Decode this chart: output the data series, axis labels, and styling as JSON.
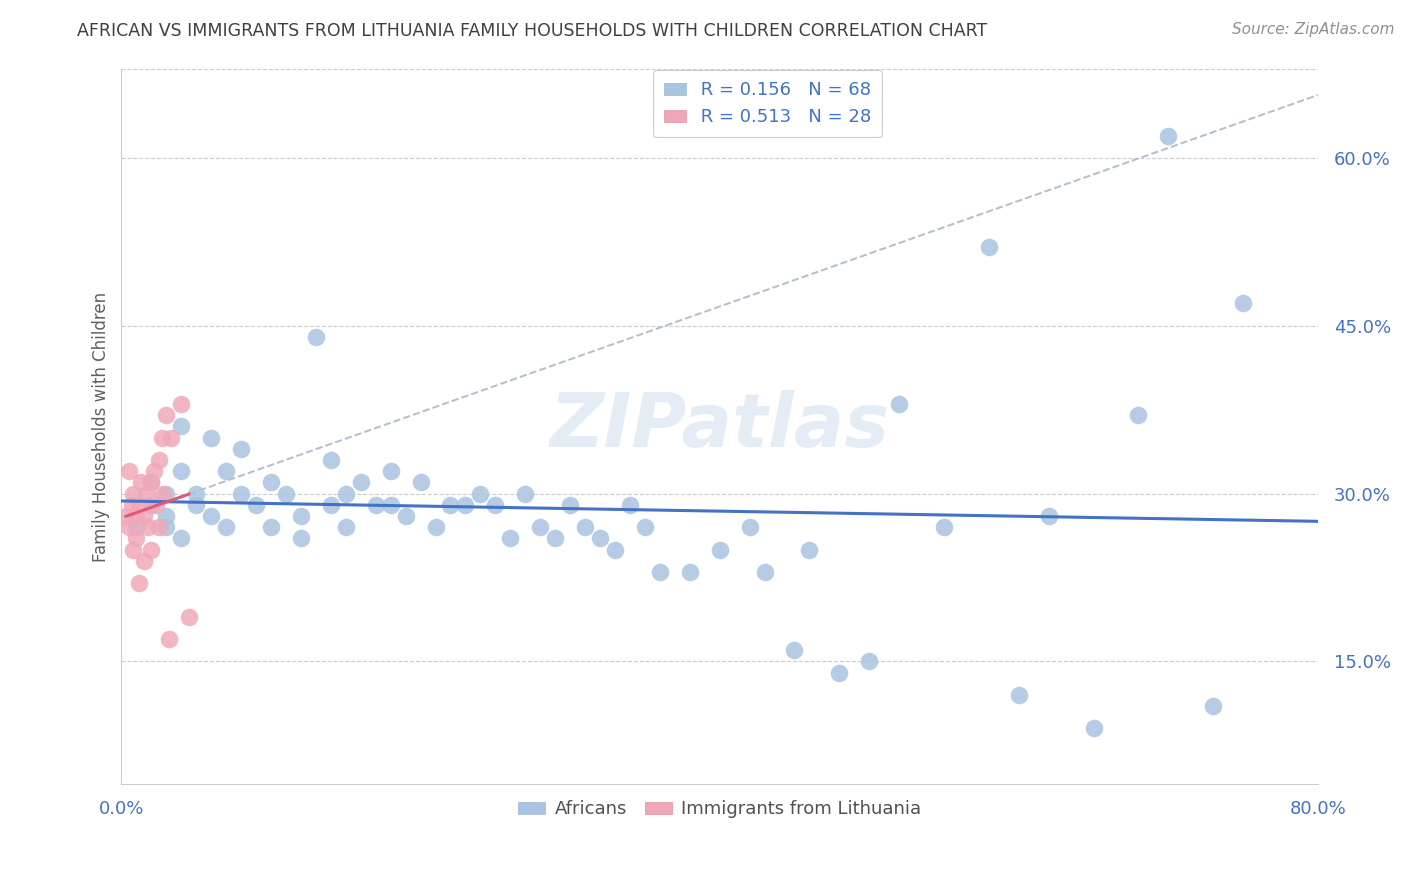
{
  "title": "AFRICAN VS IMMIGRANTS FROM LITHUANIA FAMILY HOUSEHOLDS WITH CHILDREN CORRELATION CHART",
  "source": "Source: ZipAtlas.com",
  "ylabel": "Family Households with Children",
  "ytick_values": [
    0.15,
    0.3,
    0.45,
    0.6
  ],
  "xlim": [
    0.0,
    0.8
  ],
  "ylim": [
    0.04,
    0.68
  ],
  "legend_blue_r": "R = 0.156",
  "legend_blue_n": "N = 68",
  "legend_pink_r": "R = 0.513",
  "legend_pink_n": "N = 28",
  "blue_color": "#a8c4e0",
  "pink_color": "#f0a8b8",
  "trendline_blue": "#4472c4",
  "trendline_pink": "#e05878",
  "trendline_dashed_color": "#b0bece",
  "title_color": "#404040",
  "axis_label_color": "#4472c4",
  "tick_color": "#4472c4",
  "source_color": "#909090",
  "watermark": "ZIPatlas",
  "blue_x": [
    0.01,
    0.02,
    0.02,
    0.03,
    0.03,
    0.03,
    0.04,
    0.04,
    0.04,
    0.05,
    0.05,
    0.06,
    0.06,
    0.07,
    0.07,
    0.08,
    0.08,
    0.09,
    0.1,
    0.1,
    0.11,
    0.12,
    0.12,
    0.13,
    0.14,
    0.14,
    0.15,
    0.15,
    0.16,
    0.17,
    0.18,
    0.18,
    0.19,
    0.2,
    0.21,
    0.22,
    0.23,
    0.24,
    0.25,
    0.26,
    0.27,
    0.28,
    0.29,
    0.3,
    0.31,
    0.32,
    0.33,
    0.34,
    0.35,
    0.36,
    0.38,
    0.4,
    0.42,
    0.43,
    0.45,
    0.46,
    0.48,
    0.5,
    0.52,
    0.55,
    0.58,
    0.6,
    0.62,
    0.65,
    0.68,
    0.7,
    0.73,
    0.75
  ],
  "blue_y": [
    0.27,
    0.29,
    0.31,
    0.27,
    0.28,
    0.3,
    0.26,
    0.32,
    0.36,
    0.29,
    0.3,
    0.28,
    0.35,
    0.27,
    0.32,
    0.3,
    0.34,
    0.29,
    0.27,
    0.31,
    0.3,
    0.26,
    0.28,
    0.44,
    0.29,
    0.33,
    0.27,
    0.3,
    0.31,
    0.29,
    0.29,
    0.32,
    0.28,
    0.31,
    0.27,
    0.29,
    0.29,
    0.3,
    0.29,
    0.26,
    0.3,
    0.27,
    0.26,
    0.29,
    0.27,
    0.26,
    0.25,
    0.29,
    0.27,
    0.23,
    0.23,
    0.25,
    0.27,
    0.23,
    0.16,
    0.25,
    0.14,
    0.15,
    0.38,
    0.27,
    0.52,
    0.12,
    0.28,
    0.09,
    0.37,
    0.62,
    0.11,
    0.47
  ],
  "pink_x": [
    0.003,
    0.005,
    0.005,
    0.007,
    0.008,
    0.008,
    0.01,
    0.01,
    0.012,
    0.012,
    0.013,
    0.015,
    0.015,
    0.017,
    0.018,
    0.02,
    0.02,
    0.022,
    0.023,
    0.025,
    0.025,
    0.027,
    0.028,
    0.03,
    0.032,
    0.033,
    0.04,
    0.045
  ],
  "pink_y": [
    0.28,
    0.32,
    0.27,
    0.29,
    0.3,
    0.25,
    0.28,
    0.26,
    0.29,
    0.22,
    0.31,
    0.28,
    0.24,
    0.3,
    0.27,
    0.31,
    0.25,
    0.32,
    0.29,
    0.33,
    0.27,
    0.35,
    0.3,
    0.37,
    0.17,
    0.35,
    0.38,
    0.19
  ]
}
